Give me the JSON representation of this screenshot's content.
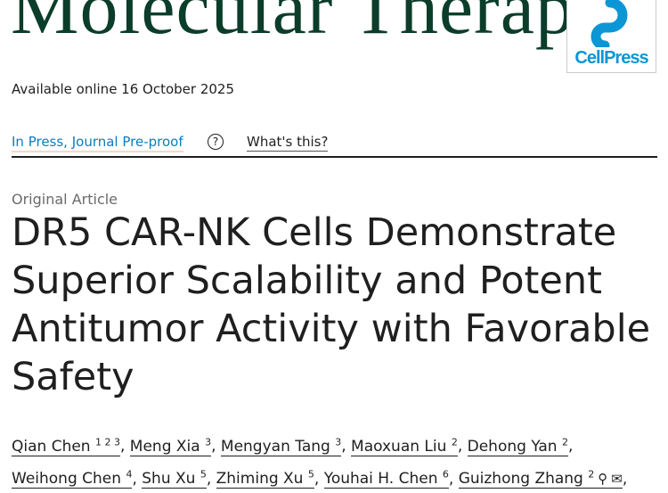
{
  "journal": {
    "title": "Molecular Therapy",
    "publisher_logo": "CellPress"
  },
  "available": "Available online 16 October 2025",
  "status": {
    "label": "In Press, Journal Pre-proof",
    "help_icon": "question-circle-icon",
    "whats_this": "What's this?"
  },
  "article": {
    "type": "Original Article",
    "title": "DR5 CAR-NK Cells Demonstrate Superior Scalability and Potent Antitumor Activity with Favorable Safety",
    "authors": [
      {
        "name": "Qian Chen",
        "sup": "1 2 3"
      },
      {
        "name": "Meng Xia",
        "sup": "3"
      },
      {
        "name": "Mengyan Tang",
        "sup": "3"
      },
      {
        "name": "Maoxuan Liu",
        "sup": "2"
      },
      {
        "name": "Dehong Yan",
        "sup": "2"
      },
      {
        "name": "Weihong Chen",
        "sup": "4"
      },
      {
        "name": "Shu Xu",
        "sup": "5"
      },
      {
        "name": "Zhiming Xu",
        "sup": "5"
      },
      {
        "name": "Youhai H. Chen",
        "sup": "6"
      },
      {
        "name": "Guizhong Zhang",
        "sup": "2"
      }
    ]
  },
  "colors": {
    "journal": "#0b3d2a",
    "link": "#0c7dbb",
    "cellpress": "#0c96d6"
  }
}
